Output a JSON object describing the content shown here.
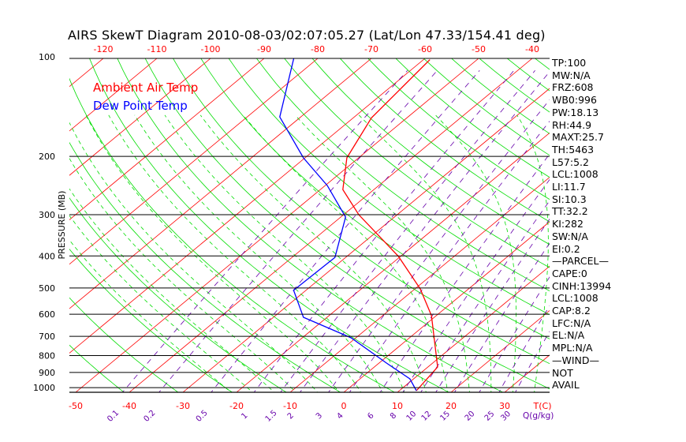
{
  "title": "AIRS SkewT Diagram 2010-08-03/02:07:05.27 (Lat/Lon 47.33/154.41 deg)",
  "stats": [
    "TP:100",
    "MW:N/A",
    "FRZ:608",
    "WB0:996",
    "PW:18.13",
    "RH:44.9",
    "MAXT:25.7",
    "TH:5463",
    "L57:5.2",
    "LCL:1008",
    "LI:11.7",
    "SI:10.3",
    "TT:32.2",
    "KI:282",
    "SW:N/A",
    "EI:0.2",
    "—PARCEL—",
    "CAPE:0",
    "CINH:13994",
    "LCL:1008",
    "CAP:8.2",
    "LFC:N/A",
    "EL:N/A",
    "MPL:N/A",
    "—WIND—",
    "NOT",
    "AVAIL"
  ],
  "colors": {
    "temp": "#ff0000",
    "dew": "#0000ff",
    "adiabat": "#00dd00",
    "mixing": "#6600aa",
    "isobar": "#000000"
  },
  "chart_data": {
    "type": "line",
    "subtype": "skew-T log-P",
    "ylabel": "PRESSURE (MB)",
    "xlabel": "T(C)",
    "mixing_label": "Q(g/kg)",
    "pressure_ticks": [
      100,
      200,
      300,
      400,
      500,
      600,
      700,
      800,
      900,
      1000
    ],
    "top_temp_ticks": [
      -120,
      -110,
      -100,
      -90,
      -80,
      -70,
      -60,
      -50,
      -40
    ],
    "bottom_temp_ticks": [
      -50,
      -40,
      -30,
      -20,
      -10,
      0,
      10,
      20,
      30
    ],
    "mixing_ratio_ticks": [
      "0.1",
      "0.2",
      "0.5",
      "1",
      "1.5",
      "2",
      "3",
      "4",
      "6",
      "8",
      "10",
      "12",
      "15",
      "20",
      "25",
      "30"
    ],
    "plim": [
      1033,
      100
    ],
    "legend": [
      "Ambient Air Temp",
      "Dew Point Temp"
    ],
    "legend_position": "top-left",
    "series": [
      {
        "name": "Ambient Air Temp",
        "p": [
          1022,
          866,
          606,
          503,
          401,
          300,
          252,
          202,
          153,
          102
        ],
        "t": [
          13.2,
          11.8,
          -0.9,
          -9.0,
          -20.4,
          -37.2,
          -45.8,
          -52.2,
          -56.6,
          -58.8
        ]
      },
      {
        "name": "Dew Point Temp",
        "p": [
          1022,
          941,
          843,
          707,
          613,
          508,
          404,
          305,
          245,
          202,
          152,
          101
        ],
        "t": [
          13.2,
          9.3,
          1.4,
          -10.9,
          -24.4,
          -32.3,
          -32.0,
          -39.1,
          -49.6,
          -60.3,
          -73.9,
          -84.5
        ]
      }
    ]
  }
}
